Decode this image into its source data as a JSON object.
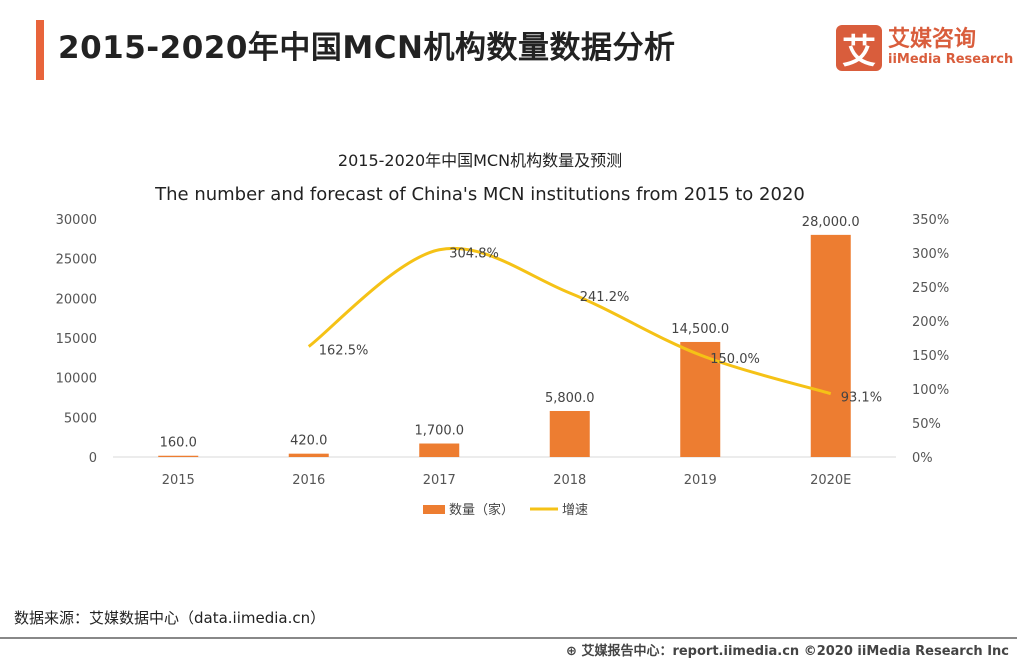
{
  "header": {
    "title": "2015-2020年中国MCN机构数量数据分析"
  },
  "logo": {
    "mark": "艾",
    "cn": "艾媒咨询",
    "en": "iiMedia Research"
  },
  "source": "数据来源：艾媒数据中心（data.iimedia.cn）",
  "footer": "艾媒报告中心：report.iimedia.cn  ©2020  iiMedia Research  Inc",
  "colors": {
    "bar": "#ed7d31",
    "line": "#f5c216",
    "accent": "#e8643b"
  },
  "chart_data": {
    "type": "bar+line",
    "title": "2015-2020年中国MCN机构数量及预测",
    "subtitle": "The number and forecast of China's MCN institutions from 2015 to 2020",
    "categories": [
      "2015",
      "2016",
      "2017",
      "2018",
      "2019",
      "2020E"
    ],
    "y_left": {
      "range": [
        0,
        30000
      ],
      "ticks": [
        "0",
        "5000",
        "10000",
        "15000",
        "20000",
        "25000",
        "30000"
      ]
    },
    "y_right": {
      "range": [
        0,
        350
      ],
      "ticks": [
        "0%",
        "50%",
        "100%",
        "150%",
        "200%",
        "250%",
        "300%",
        "350%"
      ]
    },
    "series": [
      {
        "name": "数量（家）",
        "type": "bar",
        "values": [
          160,
          420,
          1700,
          5800,
          14500,
          28000
        ],
        "labels": [
          "160.0",
          "420.0",
          "1,700.0",
          "5,800.0",
          "14,500.0",
          "28,000.0"
        ]
      },
      {
        "name": "增速",
        "type": "line",
        "values": [
          null,
          162.5,
          304.8,
          241.2,
          150.0,
          93.1
        ],
        "labels": [
          "",
          "162.5%",
          "304.8%",
          "241.2%",
          "150.0%",
          "93.1%"
        ]
      }
    ],
    "legend": "bottom"
  }
}
